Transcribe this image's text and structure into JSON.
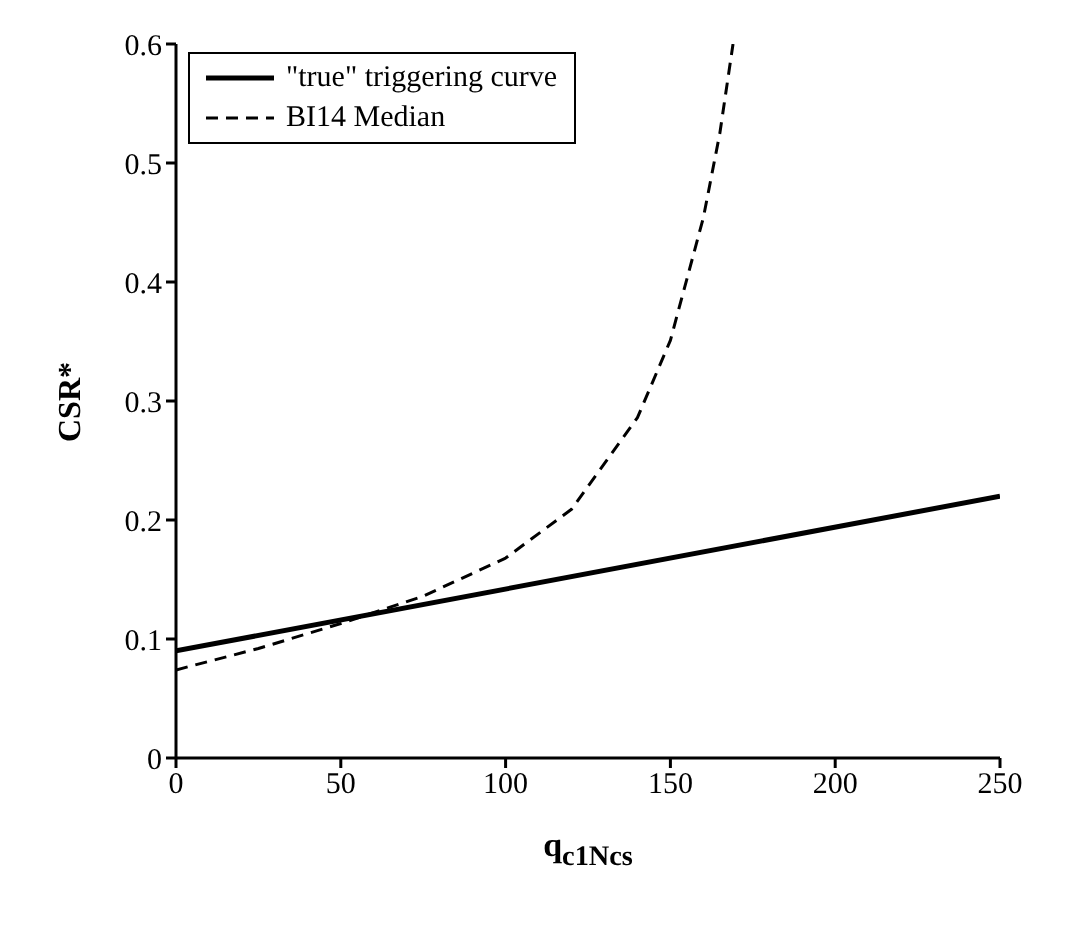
{
  "chart_data": {
    "type": "line",
    "xlabel": "q$_{c1Ncs}$",
    "ylabel": "CSR*",
    "xlim": [
      0,
      250
    ],
    "xticks": [
      0,
      50,
      100,
      150,
      200,
      250
    ],
    "ylim": [
      0,
      0.6
    ],
    "yticks": [
      0,
      0.1,
      0.2,
      0.3,
      0.4,
      0.5,
      0.6
    ],
    "legend": "top left",
    "marker": "none",
    "series": [
      {
        "name": "\"true\" triggering curve",
        "color": "#000000",
        "line_style": "solid",
        "x": [
          0,
          250
        ],
        "values": [
          0.09,
          0.22
        ]
      },
      {
        "name": "BI14 Median",
        "color": "#000000",
        "line_style": "dashed",
        "x": [
          0,
          25,
          50,
          75,
          100,
          120,
          140,
          150,
          160,
          165,
          169
        ],
        "values": [
          0.074,
          0.092,
          0.113,
          0.136,
          0.168,
          0.209,
          0.286,
          0.351,
          0.454,
          0.525,
          0.6
        ]
      }
    ]
  }
}
